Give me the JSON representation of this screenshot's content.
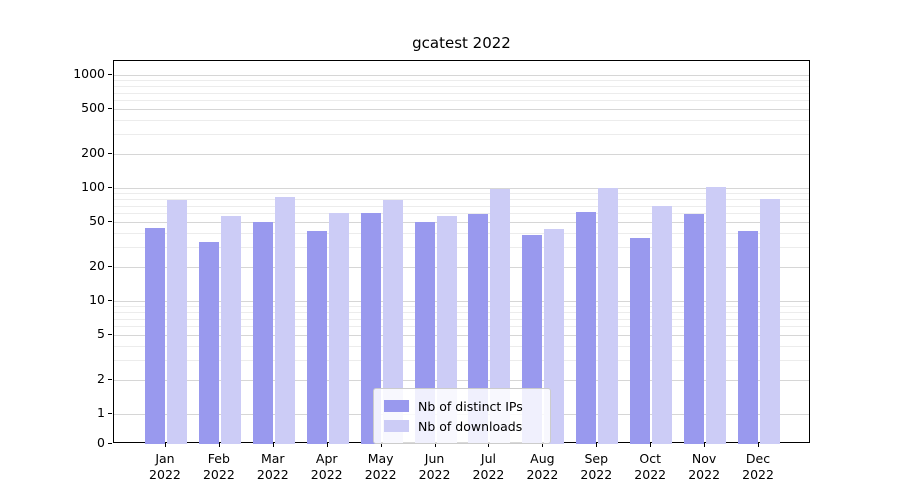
{
  "title": "gcatest 2022",
  "chart_data": {
    "type": "bar",
    "title": "gcatest 2022",
    "xlabel": "",
    "ylabel": "",
    "yscale": "symlog",
    "grid": true,
    "legend_position": "bottom-center",
    "yticks": [
      0,
      1,
      2,
      5,
      10,
      20,
      50,
      100,
      200,
      500,
      1000
    ],
    "minor_gridlines": [
      3,
      4,
      6,
      7,
      8,
      9,
      30,
      40,
      60,
      70,
      80,
      90,
      300,
      400,
      600,
      700,
      800,
      900
    ],
    "categories": [
      "Jan 2022",
      "Feb 2022",
      "Mar 2022",
      "Apr 2022",
      "May 2022",
      "Jun 2022",
      "Jul 2022",
      "Aug 2022",
      "Sep 2022",
      "Oct 2022",
      "Nov 2022",
      "Dec 2022"
    ],
    "series": [
      {
        "name": "Nb of distinct IPs",
        "color": "#9999ee",
        "values": [
          44,
          33,
          50,
          42,
          60,
          50,
          59,
          38,
          61,
          36,
          59,
          42
        ]
      },
      {
        "name": "Nb of downloads",
        "color": "#ccccf6",
        "values": [
          78,
          56,
          84,
          60,
          79,
          56,
          97,
          43,
          100,
          70,
          102,
          80
        ]
      }
    ]
  }
}
